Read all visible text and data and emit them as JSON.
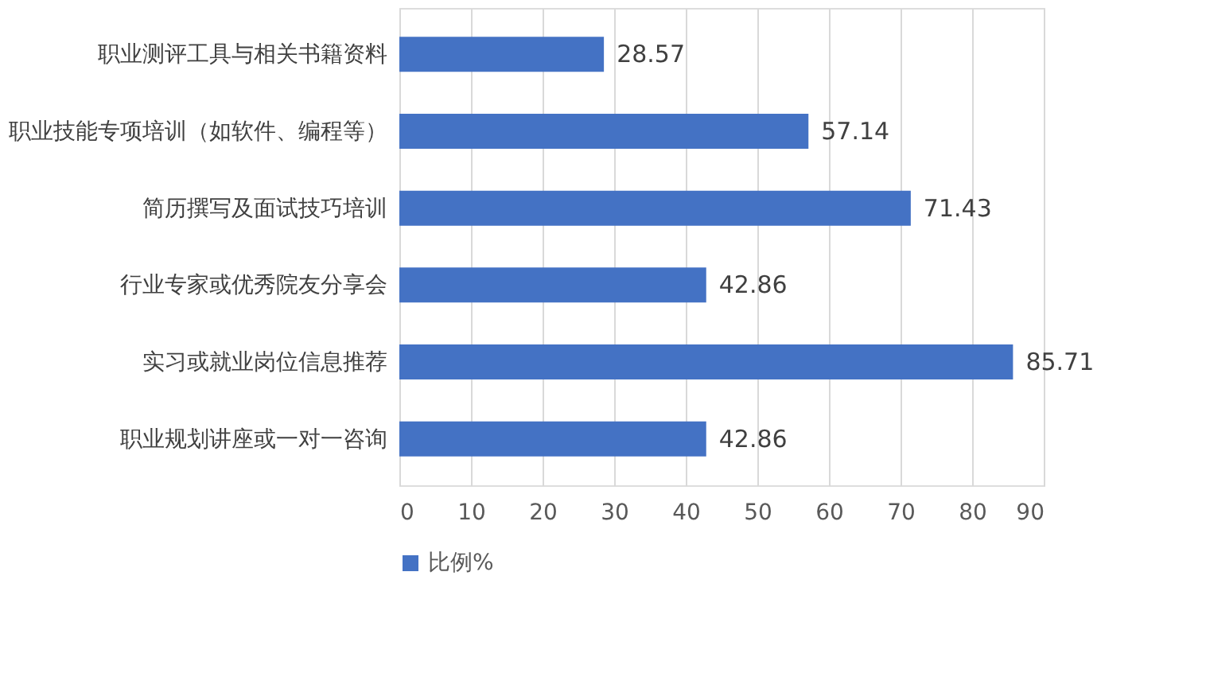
{
  "chart_data": {
    "type": "bar",
    "orientation": "horizontal",
    "categories": [
      "职业测评工具与相关书籍资料",
      "职业技能专项培训（如软件、编程等）",
      "简历撰写及面试技巧培训",
      "行业专家或优秀院友分享会",
      "实习或就业岗位信息推荐",
      "职业规划讲座或一对一咨询"
    ],
    "series": [
      {
        "name": "比例%",
        "color": "#4472c4",
        "values": [
          28.57,
          57.14,
          71.43,
          42.86,
          85.71,
          42.86
        ]
      }
    ],
    "xlim": [
      0,
      90
    ],
    "xticks": [
      0,
      10,
      20,
      30,
      40,
      50,
      60,
      70,
      80,
      90
    ],
    "grid": "x",
    "legend": "bottom",
    "data_labels": true
  }
}
